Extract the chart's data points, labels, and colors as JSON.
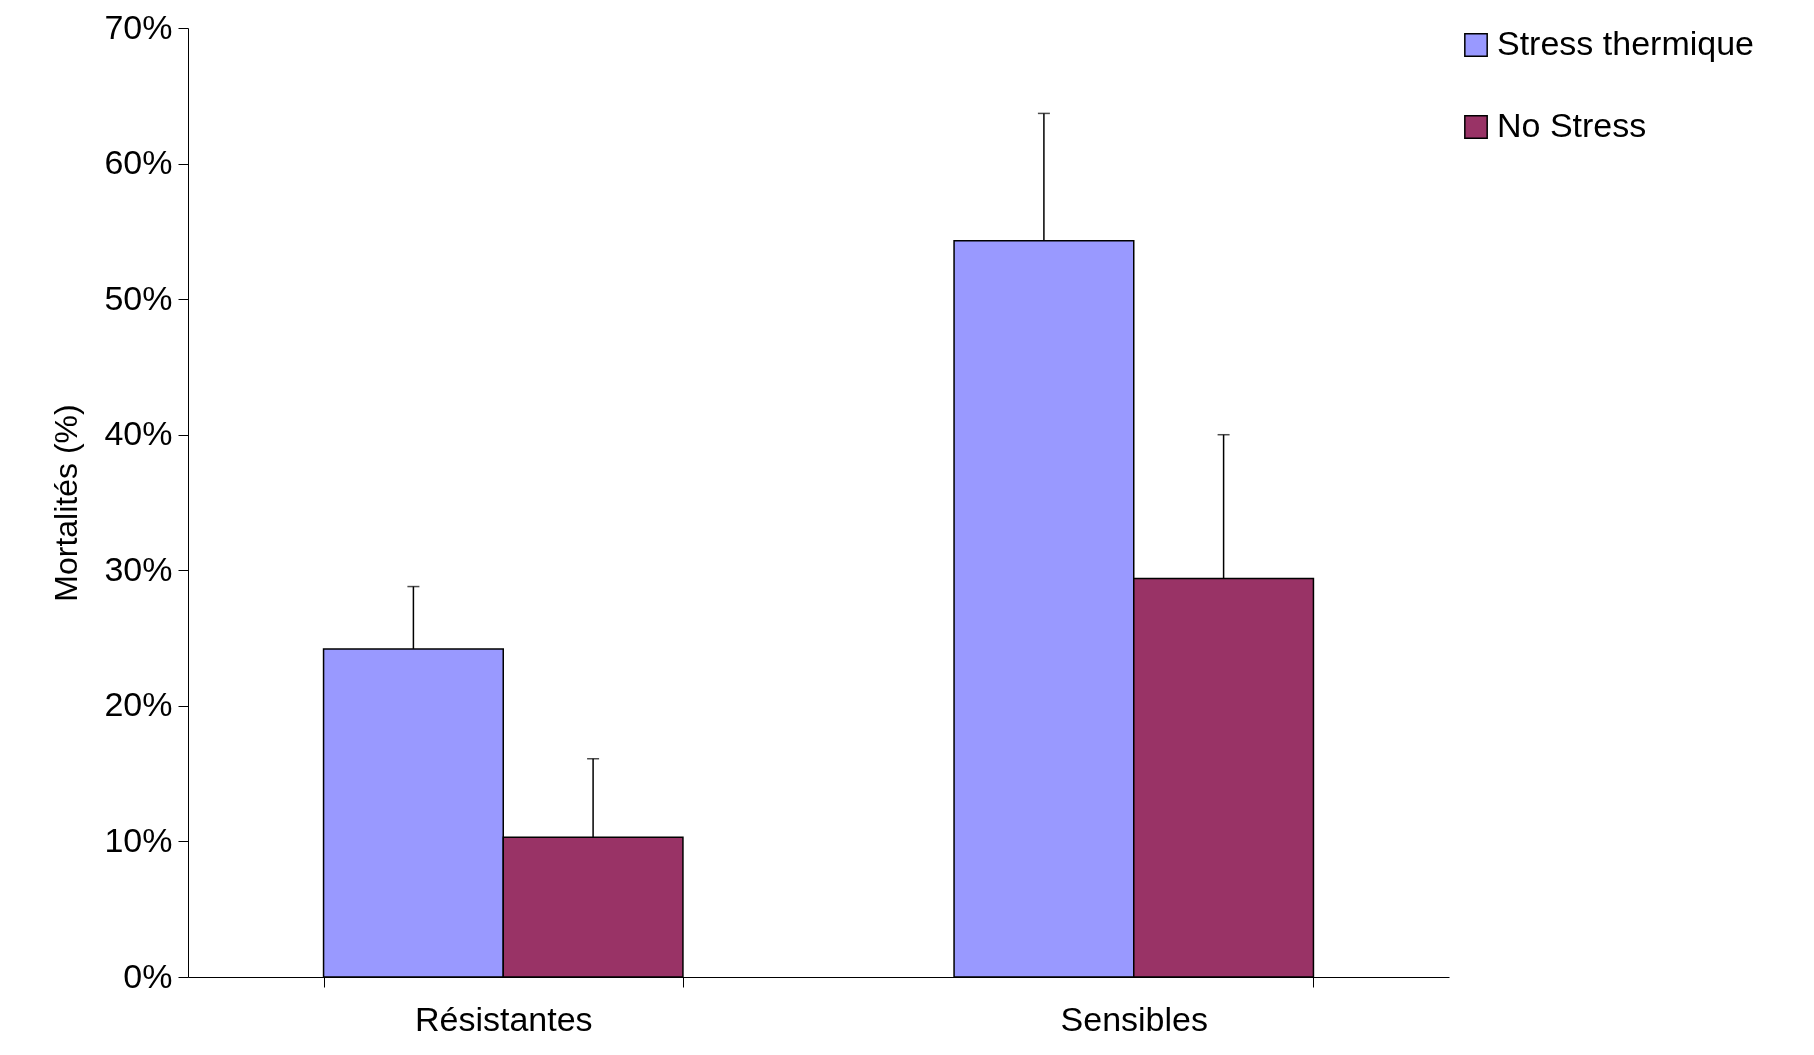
{
  "chart_data": {
    "type": "bar",
    "ylabel": "Mortalités (%)",
    "categories": [
      "Résistantes",
      "Sensibles"
    ],
    "series": [
      {
        "name": "Stress thermique",
        "color": "#9999ff",
        "values": [
          24.2,
          54.3
        ],
        "errors": [
          [
            24.2,
            28.8
          ],
          [
            54.3,
            63.7
          ]
        ]
      },
      {
        "name": "No Stress",
        "color": "#993366",
        "values": [
          10.3,
          29.4
        ],
        "errors": [
          [
            10.3,
            16.1
          ],
          [
            29.4,
            40.0
          ]
        ]
      }
    ],
    "ylim": [
      0,
      70
    ],
    "yticks": [
      {
        "value": 0,
        "label": "0%"
      },
      {
        "value": 10,
        "label": "10%"
      },
      {
        "value": 20,
        "label": "20%"
      },
      {
        "value": 30,
        "label": "30%"
      },
      {
        "value": 40,
        "label": "40%"
      },
      {
        "value": 50,
        "label": "50%"
      },
      {
        "value": 60,
        "label": "60%"
      },
      {
        "value": 70,
        "label": "70%"
      }
    ],
    "grid": false,
    "legend": "right"
  }
}
